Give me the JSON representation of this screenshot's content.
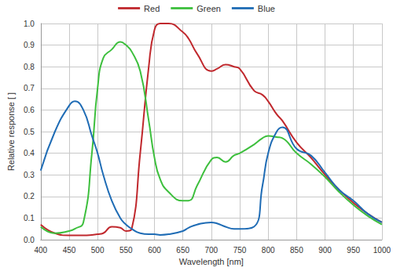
{
  "chart_data": {
    "type": "line",
    "x_label": "Wavelength [nm]",
    "y_label": "Relative response [ ]",
    "x": [
      400,
      425,
      450,
      460,
      475,
      490,
      500,
      510,
      525,
      540,
      550,
      560,
      575,
      590,
      600,
      610,
      625,
      650,
      660,
      675,
      700,
      710,
      725,
      740,
      750,
      775,
      790,
      800,
      815,
      825,
      850,
      875,
      900,
      925,
      950,
      975,
      1000
    ],
    "series": [
      {
        "name": "Red",
        "color": "#c0282d",
        "values": [
          0.07,
          0.03,
          0.02,
          0.02,
          0.02,
          0.022,
          0.025,
          0.03,
          0.06,
          0.055,
          0.04,
          0.05,
          0.4,
          0.8,
          0.97,
          1.0,
          1.0,
          0.96,
          0.93,
          0.86,
          0.78,
          0.79,
          0.81,
          0.8,
          0.79,
          0.69,
          0.67,
          0.64,
          0.58,
          0.55,
          0.45,
          0.38,
          0.3,
          0.23,
          0.17,
          0.12,
          0.08
        ]
      },
      {
        "name": "Green",
        "color": "#3dbf3d",
        "values": [
          0.06,
          0.03,
          0.04,
          0.05,
          0.08,
          0.4,
          0.7,
          0.84,
          0.88,
          0.915,
          0.9,
          0.87,
          0.78,
          0.55,
          0.38,
          0.28,
          0.22,
          0.18,
          0.18,
          0.25,
          0.37,
          0.38,
          0.36,
          0.39,
          0.4,
          0.44,
          0.47,
          0.48,
          0.475,
          0.47,
          0.4,
          0.35,
          0.29,
          0.22,
          0.16,
          0.11,
          0.07
        ]
      },
      {
        "name": "Blue",
        "color": "#1f6cb5",
        "values": [
          0.32,
          0.5,
          0.62,
          0.64,
          0.6,
          0.48,
          0.4,
          0.3,
          0.18,
          0.1,
          0.07,
          0.05,
          0.03,
          0.025,
          0.025,
          0.022,
          0.025,
          0.04,
          0.055,
          0.07,
          0.08,
          0.075,
          0.06,
          0.05,
          0.05,
          0.06,
          0.25,
          0.4,
          0.5,
          0.52,
          0.42,
          0.39,
          0.31,
          0.23,
          0.18,
          0.12,
          0.08
        ]
      }
    ],
    "xlim": [
      400,
      1000
    ],
    "xticks": [
      400,
      450,
      500,
      550,
      600,
      650,
      700,
      750,
      800,
      850,
      900,
      950,
      1000
    ],
    "ylim": [
      0,
      1
    ],
    "yticks": [
      {
        "value": 0,
        "label": "0.0"
      },
      0.1,
      0.2,
      0.3,
      0.4,
      0.5,
      0.6,
      0.7,
      0.8,
      0.9,
      {
        "value": 1,
        "label": "1.0"
      }
    ],
    "grid": true,
    "legend": "top"
  }
}
